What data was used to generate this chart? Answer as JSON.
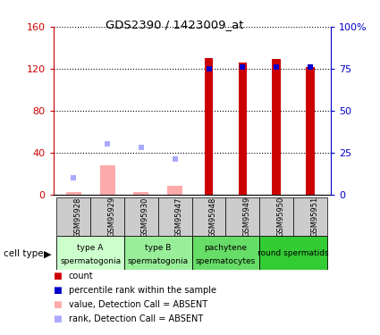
{
  "title": "GDS2390 / 1423009_at",
  "samples": [
    "GSM95928",
    "GSM95929",
    "GSM95930",
    "GSM95947",
    "GSM95948",
    "GSM95949",
    "GSM95950",
    "GSM95951"
  ],
  "count_values": [
    null,
    null,
    null,
    null,
    130,
    126,
    129,
    122
  ],
  "count_absent": [
    2,
    28,
    2,
    8,
    null,
    null,
    null,
    null
  ],
  "rank_values_pct": [
    null,
    null,
    null,
    null,
    75,
    76,
    76,
    76
  ],
  "rank_absent_pct": [
    10,
    30,
    28,
    21,
    null,
    null,
    null,
    null
  ],
  "ylim_left": [
    0,
    160
  ],
  "ylim_right": [
    0,
    100
  ],
  "yticks_left": [
    0,
    40,
    80,
    120,
    160
  ],
  "yticks_right": [
    0,
    25,
    50,
    75,
    100
  ],
  "ytick_labels_left": [
    "0",
    "40",
    "80",
    "120",
    "160"
  ],
  "ytick_labels_right": [
    "0",
    "25",
    "50",
    "75",
    "100%"
  ],
  "color_count": "#cc0000",
  "color_rank": "#0000cc",
  "color_count_absent": "#ffaaaa",
  "color_rank_absent": "#aaaaff",
  "cell_types": [
    {
      "label": "type A\nspermatogonia",
      "start": 0,
      "end": 2,
      "color": "#ccffcc"
    },
    {
      "label": "type B\nspermatogonia",
      "start": 2,
      "end": 4,
      "color": "#99ee99"
    },
    {
      "label": "pachytene\nspermatocytes",
      "start": 4,
      "end": 6,
      "color": "#66dd66"
    },
    {
      "label": "round spermatids",
      "start": 6,
      "end": 8,
      "color": "#33cc33"
    }
  ],
  "legend_items": [
    {
      "color": "#cc0000",
      "label": "count"
    },
    {
      "color": "#0000cc",
      "label": "percentile rank within the sample"
    },
    {
      "color": "#ffaaaa",
      "label": "value, Detection Call = ABSENT"
    },
    {
      "color": "#aaaaff",
      "label": "rank, Detection Call = ABSENT"
    }
  ],
  "cell_type_label": "cell type",
  "xlabel_color": "#cc0000",
  "ylabel_right_color": "#0000cc",
  "tick_box_color": "#cccccc",
  "plot_bg": "#ffffff"
}
